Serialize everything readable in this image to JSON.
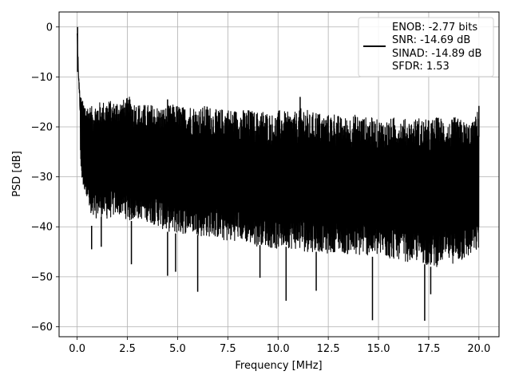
{
  "chart_data": {
    "type": "line",
    "title": "",
    "xlabel": "Frequency [MHz]",
    "ylabel": "PSD [dB]",
    "xlim": [
      -0.9,
      21.0
    ],
    "ylim": [
      -62,
      3
    ],
    "xticks": [
      0.0,
      2.5,
      5.0,
      7.5,
      10.0,
      12.5,
      15.0,
      17.5,
      20.0
    ],
    "xtick_labels": [
      "0.0",
      "2.5",
      "5.0",
      "7.5",
      "10.0",
      "12.5",
      "15.0",
      "17.5",
      "20.0"
    ],
    "yticks": [
      0,
      -10,
      -20,
      -30,
      -40,
      -50,
      -60
    ],
    "ytick_labels": [
      "0",
      "−10",
      "−20",
      "−30",
      "−40",
      "−50",
      "−60"
    ],
    "grid": true,
    "legend_placement": "top-right",
    "series": [
      {
        "color": "#000000",
        "x": [
          0.0,
          0.02,
          0.05,
          0.08,
          0.12,
          0.16,
          0.2,
          0.25,
          0.3,
          0.4,
          0.5,
          0.6,
          0.7,
          0.8,
          1.0,
          1.2,
          1.5,
          1.8,
          2.0,
          2.3,
          2.6,
          2.9,
          3.2,
          3.5,
          3.8,
          4.1,
          4.4,
          4.7,
          5.0,
          5.3,
          5.6,
          5.9,
          6.2,
          6.5,
          6.8,
          7.1,
          7.4,
          7.7,
          8.0,
          8.3,
          8.6,
          8.9,
          9.2,
          9.5,
          9.8,
          10.1,
          10.4,
          10.7,
          11.0,
          11.3,
          11.6,
          11.9,
          12.2,
          12.5,
          12.8,
          13.1,
          13.4,
          13.7,
          14.0,
          14.3,
          14.6,
          14.9,
          15.2,
          15.5,
          15.8,
          16.1,
          16.4,
          16.7,
          17.0,
          17.3,
          17.6,
          17.9,
          18.2,
          18.5,
          18.8,
          19.1,
          19.4,
          19.7,
          20.0
        ],
        "upper_envelope": [
          0.0,
          -3.0,
          -6.0,
          -9.0,
          -12.0,
          -13.0,
          -14.0,
          -14.5,
          -15.0,
          -15.0,
          -15.5,
          -15.5,
          -16.0,
          -15.5,
          -15.0,
          -15.0,
          -14.5,
          -15.0,
          -14.5,
          -14.5,
          -14.0,
          -15.0,
          -15.5,
          -15.5,
          -15.5,
          -16.0,
          -16.0,
          -15.5,
          -15.5,
          -16.0,
          -15.5,
          -16.0,
          -16.0,
          -15.5,
          -16.5,
          -16.5,
          -16.0,
          -16.5,
          -16.5,
          -16.5,
          -16.5,
          -17.0,
          -16.5,
          -17.0,
          -17.5,
          -16.5,
          -17.0,
          -17.0,
          -17.0,
          -15.5,
          -17.5,
          -16.5,
          -17.5,
          -17.5,
          -17.0,
          -18.0,
          -18.0,
          -17.5,
          -17.5,
          -18.0,
          -18.0,
          -18.5,
          -18.5,
          -18.5,
          -18.0,
          -18.0,
          -18.5,
          -18.5,
          -18.0,
          -18.5,
          -18.5,
          -18.0,
          -18.0,
          -19.0,
          -18.0,
          -18.5,
          -19.0,
          -19.0,
          -16.0
        ],
        "lower_envelope": [
          -5.0,
          -8.0,
          -12.0,
          -16.0,
          -22.0,
          -26.0,
          -30.0,
          -31.0,
          -32.5,
          -33.0,
          -34.0,
          -37.0,
          -40.0,
          -39.0,
          -38.0,
          -38.0,
          -38.5,
          -38.0,
          -37.5,
          -38.0,
          -39.0,
          -38.5,
          -38.5,
          -39.0,
          -39.5,
          -40.0,
          -41.0,
          -41.0,
          -41.5,
          -41.5,
          -41.0,
          -41.5,
          -42.0,
          -42.0,
          -42.0,
          -42.5,
          -43.0,
          -43.0,
          -42.5,
          -43.0,
          -43.5,
          -44.0,
          -43.5,
          -44.0,
          -44.5,
          -44.5,
          -44.0,
          -44.5,
          -44.5,
          -45.0,
          -45.0,
          -45.0,
          -45.0,
          -45.5,
          -45.0,
          -45.0,
          -45.5,
          -46.0,
          -46.0,
          -45.5,
          -46.0,
          -46.0,
          -46.0,
          -46.5,
          -46.5,
          -46.5,
          -47.0,
          -47.0,
          -47.0,
          -47.5,
          -48.0,
          -48.0,
          -47.0,
          -47.0,
          -47.5,
          -47.0,
          -46.5,
          -45.5,
          -45.0
        ],
        "deep_notches": [
          {
            "x": 0.72,
            "y": -44.5
          },
          {
            "x": 1.2,
            "y": -44.0
          },
          {
            "x": 2.7,
            "y": -47.5
          },
          {
            "x": 4.5,
            "y": -49.8
          },
          {
            "x": 4.9,
            "y": -49.0
          },
          {
            "x": 6.0,
            "y": -53.0
          },
          {
            "x": 9.1,
            "y": -50.2
          },
          {
            "x": 10.4,
            "y": -54.8
          },
          {
            "x": 11.9,
            "y": -52.8
          },
          {
            "x": 14.7,
            "y": -58.7
          },
          {
            "x": 17.3,
            "y": -58.8
          },
          {
            "x": 17.6,
            "y": -53.5
          }
        ],
        "high_spikes": [
          {
            "x": 0.02,
            "y": 0.0
          },
          {
            "x": 4.5,
            "y": -14.5
          },
          {
            "x": 11.1,
            "y": -14.0
          },
          {
            "x": 20.0,
            "y": -15.8
          }
        ]
      }
    ],
    "legend": {
      "lines": [
        "ENOB: -2.77 bits",
        "SNR: -14.69 dB",
        "SINAD: -14.89 dB",
        "SFDR: 1.53"
      ]
    }
  }
}
